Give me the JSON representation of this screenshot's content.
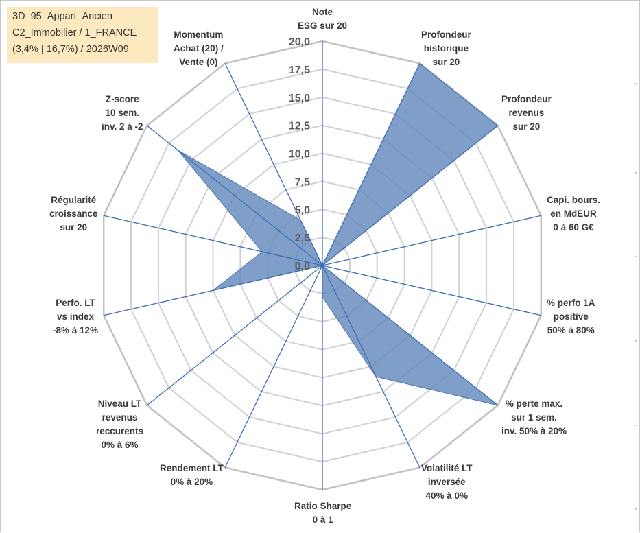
{
  "info_box": {
    "line1": "3D_95_Appart_Ancien",
    "line2": "C2_Immobilier / 1_FRANCE",
    "line3": "(3,4% | 16,7%) / 2026W09"
  },
  "colors": {
    "fill": "#5b84b8",
    "fill_opacity": "0.78",
    "outline": "#4b74aa",
    "spoke": "#3d6db5",
    "grid": "#d0d0d0",
    "outer_grid": "#c0c0c0",
    "tick_text": "#595959"
  },
  "chart_data": {
    "type": "radar",
    "title": "",
    "r_min": 0,
    "r_max": 20,
    "r_step": 2.5,
    "tick_labels": [
      "0,0",
      "2,5",
      "5,0",
      "7,5",
      "10,0",
      "12,5",
      "15,0",
      "17,5",
      "20,0"
    ],
    "axes": [
      {
        "lines": [
          "Note",
          "ESG sur 20"
        ],
        "value": 0
      },
      {
        "lines": [
          "Profondeur",
          "historique",
          "sur 20"
        ],
        "value": 20
      },
      {
        "lines": [
          "Profondeur",
          "revenus",
          "sur 20"
        ],
        "value": 20
      },
      {
        "lines": [
          "Capi. bours.",
          "en MdEUR",
          "0 à 60 G€"
        ],
        "value": 0
      },
      {
        "lines": [
          "% perfo 1A",
          "positive",
          "50% à 80%"
        ],
        "value": 0
      },
      {
        "lines": [
          "% perte max.",
          "sur 1 sem.",
          "inv. 50% à 20%"
        ],
        "value": 20
      },
      {
        "lines": [
          "Volatilité LT",
          "inversée",
          "40% à 0%"
        ],
        "value": 11
      },
      {
        "lines": [
          "Ratio Sharpe",
          "0 à 1"
        ],
        "value": 2.8
      },
      {
        "lines": [
          "Rendement LT",
          "0% à 20%"
        ],
        "value": 0
      },
      {
        "lines": [
          "Niveau LT",
          "revenus",
          "reccurents",
          "0% à 6%"
        ],
        "value": 0
      },
      {
        "lines": [
          "Perfo. LT",
          "vs index",
          "-8% à 12%"
        ],
        "value": 10
      },
      {
        "lines": [
          "Régularité",
          "croissance",
          "sur 20"
        ],
        "value": 5.5
      },
      {
        "lines": [
          "Z-score",
          "10 sem.",
          "inv. 2 à -2"
        ],
        "value": 16.5
      },
      {
        "lines": [
          "Momentum",
          "Achat (20) /",
          "Vente (0)"
        ],
        "value": 4.5
      }
    ]
  }
}
